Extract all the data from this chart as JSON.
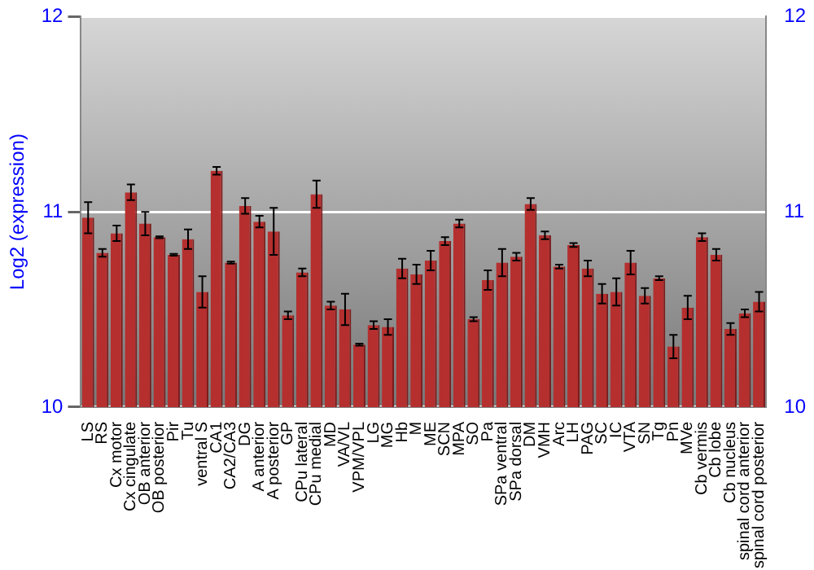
{
  "chart_data": {
    "type": "bar",
    "ylabel": "Log2 (expression)",
    "categories": [
      "LS",
      "RS",
      "Cx motor",
      "Cx cingulate",
      "OB anterior",
      "OB posterior",
      "Pir",
      "Tu",
      "ventral S",
      "CA1",
      "CA2/CA3",
      "DG",
      "A anterior",
      "A posterior",
      "GP",
      "CPu lateral",
      "CPu medial",
      "MD",
      "VA/VL",
      "VPM/VPL",
      "LG",
      "MG",
      "Hb",
      "M",
      "ME",
      "SCN",
      "MPA",
      "SO",
      "Pa",
      "SPa ventral",
      "SPa dorsal",
      "DM",
      "VMH",
      "Arc",
      "LH",
      "PAG",
      "SC",
      "IC",
      "VTA",
      "SN",
      "Tg",
      "Pn",
      "MVe",
      "Cb vermis",
      "Cb lobe",
      "Cb nucleus",
      "spinal cord anterior",
      "spinal cord posterior"
    ],
    "values": [
      10.97,
      10.79,
      10.89,
      11.1,
      10.94,
      10.87,
      10.78,
      10.86,
      10.59,
      11.21,
      10.74,
      11.03,
      10.95,
      10.9,
      10.47,
      10.69,
      11.09,
      10.52,
      10.5,
      10.32,
      10.42,
      10.41,
      10.71,
      10.68,
      10.75,
      10.85,
      10.94,
      10.45,
      10.65,
      10.74,
      10.77,
      11.04,
      10.88,
      10.72,
      10.83,
      10.71,
      10.58,
      10.59,
      10.74,
      10.57,
      10.66,
      10.31,
      10.51,
      10.87,
      10.78,
      10.4,
      10.48,
      10.54
    ],
    "errors": [
      0.08,
      0.02,
      0.04,
      0.04,
      0.06,
      0.005,
      0.005,
      0.05,
      0.08,
      0.02,
      0.005,
      0.04,
      0.03,
      0.12,
      0.02,
      0.02,
      0.07,
      0.02,
      0.08,
      0.005,
      0.02,
      0.04,
      0.05,
      0.05,
      0.05,
      0.02,
      0.02,
      0.01,
      0.05,
      0.07,
      0.02,
      0.03,
      0.02,
      0.01,
      0.01,
      0.04,
      0.05,
      0.07,
      0.06,
      0.04,
      0.01,
      0.06,
      0.06,
      0.02,
      0.03,
      0.03,
      0.02,
      0.05
    ],
    "color": "#b52f2f",
    "ylim": [
      10,
      12
    ],
    "yticks": [
      10,
      11,
      12
    ],
    "y2lim": [
      10,
      12
    ],
    "y2ticks": [
      10,
      11,
      12
    ],
    "grid": "y",
    "legend": false
  }
}
